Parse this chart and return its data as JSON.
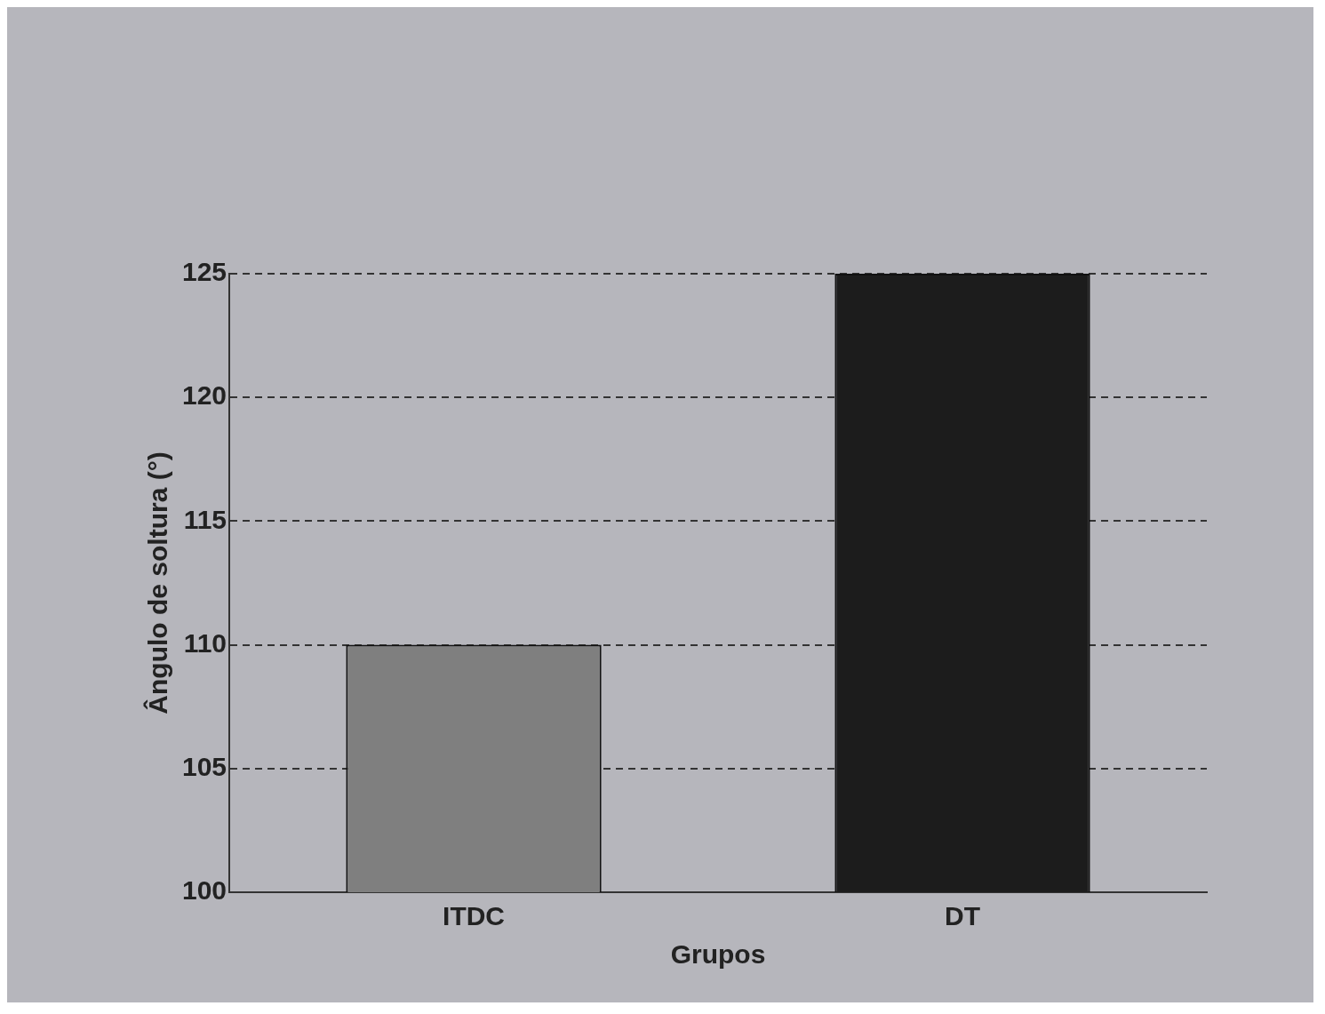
{
  "chart_data": {
    "type": "bar",
    "xlabel": "Grupos",
    "ylabel": "Ângulo de soltura (°)",
    "categories": [
      "ITDC",
      "DT"
    ],
    "values": [
      110,
      125
    ],
    "colors": [
      "#7f7f7f",
      "#1c1c1c"
    ],
    "ylim": [
      100,
      125
    ],
    "yticks": [
      100,
      105,
      110,
      115,
      120,
      125
    ],
    "grid": "y",
    "legend": false
  }
}
